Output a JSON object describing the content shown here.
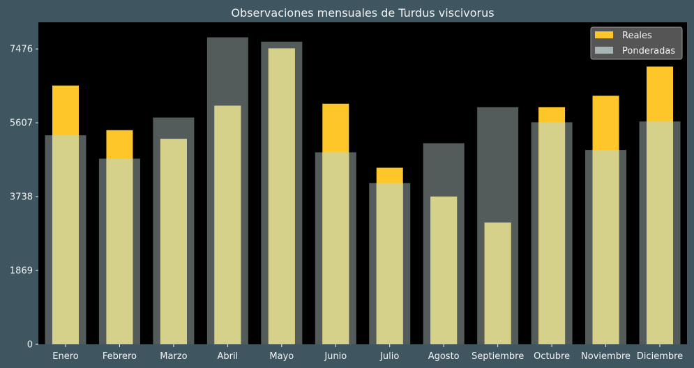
{
  "colors": {
    "figure_bg": "#3f5661",
    "plot_bg": "#000000",
    "real": "#ffc629",
    "weighted": "#a7b5b5",
    "overlap": "#d6d18a",
    "text": "#f2f2f2"
  },
  "legend": {
    "placement": "top-right",
    "entries": [
      {
        "key": "real",
        "label": "Reales"
      },
      {
        "key": "weighted",
        "label": "Ponderadas"
      }
    ]
  },
  "chart_data": {
    "type": "bar",
    "title": "Observaciones mensuales de Turdus viscivorus",
    "xlabel": "",
    "ylabel": "",
    "categories": [
      "Enero",
      "Febrero",
      "Marzo",
      "Abril",
      "Mayo",
      "Junio",
      "Julio",
      "Agosto",
      "Septiembre",
      "Octubre",
      "Noviembre",
      "Diciembre"
    ],
    "series": [
      {
        "name": "Reales",
        "key": "real",
        "values": [
          6550,
          5420,
          5200,
          6040,
          7490,
          6090,
          4470,
          3740,
          3080,
          6000,
          6290,
          7030
        ]
      },
      {
        "name": "Ponderadas",
        "key": "weighted",
        "values": [
          5290,
          4700,
          5740,
          7770,
          7660,
          4860,
          4080,
          5090,
          6000,
          5620,
          4920,
          5640
        ]
      }
    ],
    "yticks": [
      0,
      1869,
      3738,
      5607,
      7476
    ],
    "ylim": [
      0,
      8150
    ],
    "grid": false
  }
}
